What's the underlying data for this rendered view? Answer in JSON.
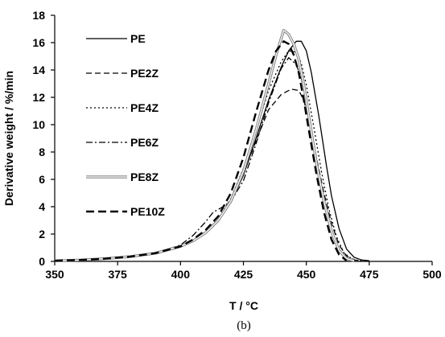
{
  "chart_data": {
    "type": "line",
    "title": "",
    "xlabel": "T / °C",
    "ylabel": "Derivative weight / %/min",
    "caption": "(b)",
    "xlim": [
      350,
      500
    ],
    "ylim": [
      0,
      18
    ],
    "xticks": [
      "350",
      "375",
      "400",
      "425",
      "450",
      "475",
      "500"
    ],
    "yticks": [
      "0",
      "2",
      "4",
      "6",
      "8",
      "10",
      "12",
      "14",
      "16",
      "18"
    ],
    "grid": false,
    "legend_position": "top-left",
    "series": [
      {
        "name": "PE",
        "style": "solid",
        "color": "#000000",
        "x": [
          350,
          360,
          370,
          380,
          390,
          400,
          405,
          410,
          415,
          420,
          425,
          430,
          435,
          440,
          443,
          446,
          448,
          450,
          452,
          455,
          458,
          460,
          463,
          466,
          469,
          472,
          475
        ],
        "y": [
          0.05,
          0.1,
          0.2,
          0.35,
          0.6,
          1.1,
          1.5,
          2.1,
          3.0,
          4.3,
          6.3,
          9.0,
          11.8,
          14.2,
          15.4,
          16.1,
          16.1,
          15.4,
          13.8,
          10.6,
          7.0,
          4.8,
          2.4,
          0.9,
          0.3,
          0.1,
          0.05
        ]
      },
      {
        "name": "PE2Z",
        "style": "dash",
        "color": "#000000",
        "x": [
          350,
          360,
          370,
          380,
          390,
          400,
          405,
          410,
          415,
          420,
          425,
          430,
          435,
          440,
          444,
          447,
          449,
          451,
          454,
          457,
          460,
          463,
          466,
          469,
          472
        ],
        "y": [
          0.05,
          0.1,
          0.2,
          0.35,
          0.6,
          1.1,
          1.5,
          2.1,
          3.0,
          4.4,
          6.4,
          8.8,
          11.1,
          12.2,
          12.6,
          12.5,
          11.8,
          10.3,
          7.6,
          5.0,
          2.8,
          1.2,
          0.4,
          0.1,
          0.05
        ]
      },
      {
        "name": "PE4Z",
        "style": "dot",
        "color": "#000000",
        "x": [
          350,
          360,
          370,
          380,
          390,
          400,
          405,
          410,
          415,
          420,
          425,
          430,
          435,
          440,
          443,
          446,
          448,
          450,
          453,
          456,
          459,
          462,
          465,
          468,
          471
        ],
        "y": [
          0.05,
          0.1,
          0.2,
          0.35,
          0.6,
          1.1,
          1.5,
          2.2,
          3.1,
          4.6,
          6.8,
          9.6,
          12.5,
          14.6,
          15.4,
          15.3,
          14.5,
          12.9,
          9.8,
          6.6,
          3.8,
          1.8,
          0.6,
          0.2,
          0.05
        ]
      },
      {
        "name": "PE6Z",
        "style": "dashdot",
        "color": "#000000",
        "x": [
          350,
          360,
          370,
          380,
          390,
          400,
          405,
          410,
          413,
          416,
          420,
          425,
          430,
          435,
          440,
          443,
          446,
          448,
          450,
          453,
          456,
          459,
          462,
          465,
          468
        ],
        "y": [
          0.05,
          0.1,
          0.2,
          0.35,
          0.6,
          1.2,
          1.9,
          2.9,
          3.6,
          3.9,
          4.4,
          5.9,
          8.6,
          11.6,
          14.1,
          14.9,
          14.4,
          13.4,
          11.8,
          8.6,
          5.4,
          2.9,
          1.2,
          0.4,
          0.05
        ]
      },
      {
        "name": "PE8Z",
        "style": "double",
        "color": "#888888",
        "x": [
          350,
          360,
          370,
          380,
          390,
          400,
          405,
          410,
          415,
          420,
          425,
          430,
          435,
          438,
          441,
          443,
          445,
          447,
          449,
          451,
          454,
          457,
          460,
          463,
          466,
          469
        ],
        "y": [
          0.05,
          0.1,
          0.2,
          0.35,
          0.6,
          1.1,
          1.5,
          2.1,
          3.0,
          4.4,
          6.6,
          9.6,
          13.0,
          15.1,
          16.9,
          16.6,
          15.9,
          14.8,
          12.9,
          10.6,
          7.2,
          4.4,
          2.2,
          0.8,
          0.2,
          0.05
        ]
      },
      {
        "name": "PE10Z",
        "style": "longdash",
        "color": "#000000",
        "x": [
          350,
          360,
          370,
          380,
          390,
          400,
          405,
          410,
          415,
          420,
          425,
          430,
          435,
          438,
          441,
          443,
          445,
          447,
          449,
          451,
          454,
          457,
          460,
          463,
          466
        ],
        "y": [
          0.05,
          0.1,
          0.2,
          0.35,
          0.6,
          1.1,
          1.6,
          2.3,
          3.3,
          5.0,
          7.6,
          10.9,
          14.0,
          15.4,
          16.1,
          15.9,
          15.1,
          13.8,
          11.8,
          9.6,
          6.4,
          3.6,
          1.6,
          0.5,
          0.05
        ]
      }
    ]
  }
}
